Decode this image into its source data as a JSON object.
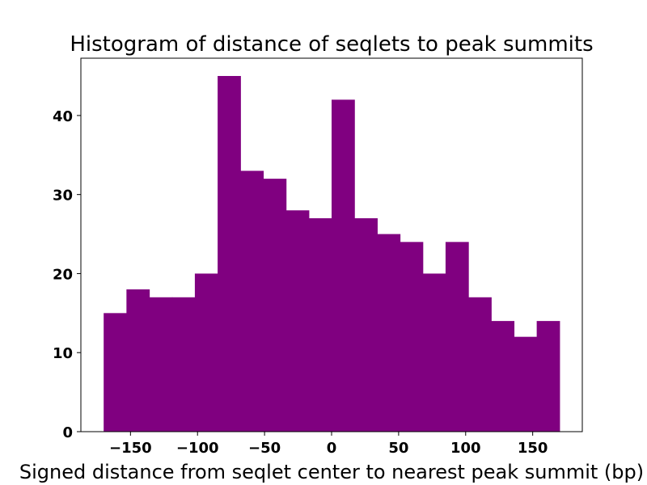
{
  "chart_data": {
    "type": "bar",
    "title": "Histogram of distance of seqlets to peak summits",
    "xlabel": "Signed distance from seqlet center to nearest peak summit (bp)",
    "ylabel": "",
    "bar_color": "#800080",
    "bin_edges": [
      -170,
      -153,
      -136,
      -119,
      -102,
      -85,
      -68,
      -51,
      -34,
      -17,
      0,
      17,
      34,
      51,
      68,
      85,
      102,
      119,
      136,
      153,
      170
    ],
    "values": [
      15,
      18,
      17,
      17,
      20,
      45,
      33,
      32,
      28,
      27,
      42,
      27,
      25,
      24,
      20,
      24,
      17,
      14,
      12,
      14
    ],
    "xlim": [
      -187,
      187
    ],
    "ylim": [
      0,
      47.25
    ],
    "xticks": [
      -150,
      -100,
      -50,
      0,
      50,
      100,
      150
    ],
    "xtick_labels": [
      "−150",
      "−100",
      "−50",
      "0",
      "50",
      "100",
      "150"
    ],
    "yticks": [
      0,
      10,
      20,
      30,
      40
    ],
    "ytick_labels": [
      "0",
      "10",
      "20",
      "30",
      "40"
    ],
    "grid": false,
    "legend": false
  }
}
